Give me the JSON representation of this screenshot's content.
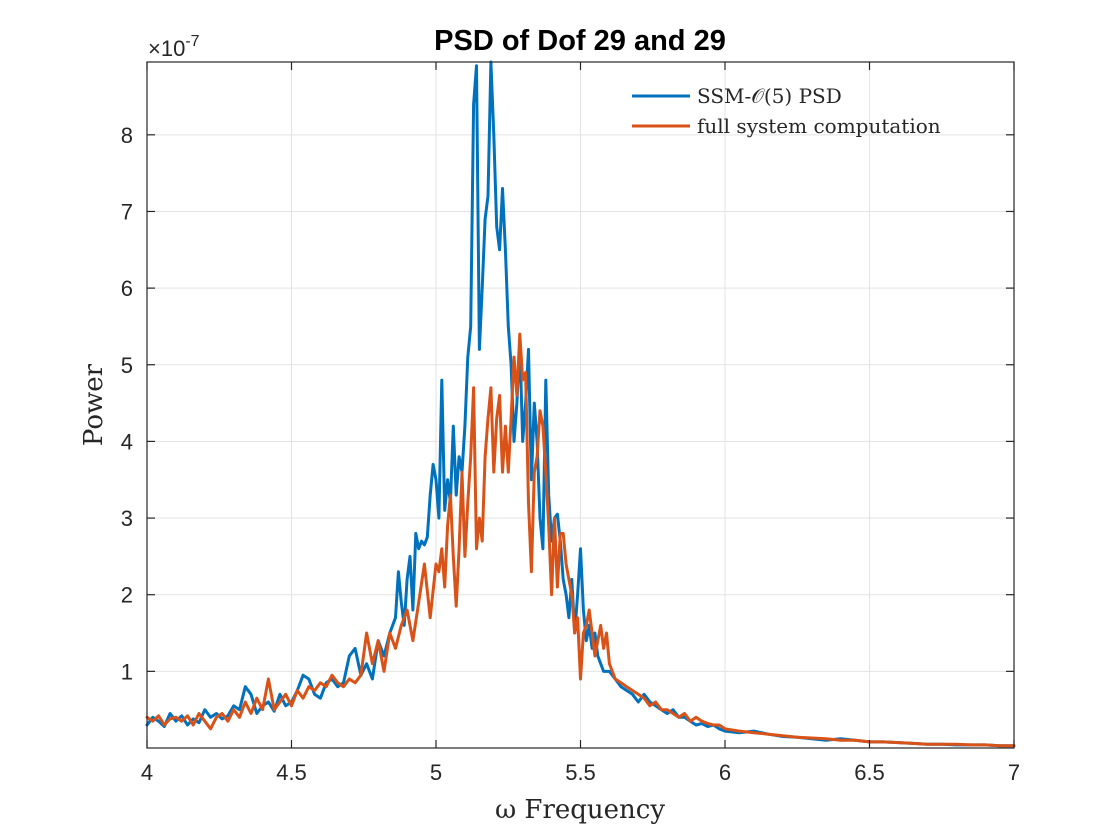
{
  "chart_data": {
    "type": "line",
    "title": "PSD of Dof 29 and 29",
    "xlabel": "ω Frequency",
    "ylabel": "Power",
    "y_exponent_label": "×10",
    "y_exponent_power": "-7",
    "xlim": [
      4,
      7
    ],
    "ylim": [
      0,
      8.95
    ],
    "xticks": [
      4,
      4.5,
      5,
      5.5,
      6,
      6.5,
      7
    ],
    "xtick_labels": [
      "4",
      "4.5",
      "5",
      "5.5",
      "6",
      "6.5",
      "7"
    ],
    "yticks": [
      1,
      2,
      3,
      4,
      5,
      6,
      7,
      8
    ],
    "ytick_labels": [
      "1",
      "2",
      "3",
      "4",
      "5",
      "6",
      "7",
      "8"
    ],
    "grid": true,
    "legend_position": "top-right",
    "series": [
      {
        "name": "SSM-𝒪(5) PSD",
        "color": "#0072BD",
        "x": [
          4.0,
          4.02,
          4.04,
          4.06,
          4.08,
          4.1,
          4.12,
          4.14,
          4.16,
          4.18,
          4.2,
          4.22,
          4.24,
          4.26,
          4.28,
          4.3,
          4.32,
          4.34,
          4.36,
          4.38,
          4.4,
          4.42,
          4.44,
          4.46,
          4.48,
          4.5,
          4.52,
          4.54,
          4.56,
          4.58,
          4.6,
          4.62,
          4.64,
          4.66,
          4.68,
          4.7,
          4.72,
          4.74,
          4.76,
          4.78,
          4.8,
          4.82,
          4.84,
          4.86,
          4.87,
          4.88,
          4.89,
          4.9,
          4.91,
          4.92,
          4.93,
          4.94,
          4.95,
          4.96,
          4.97,
          4.98,
          4.99,
          5.0,
          5.01,
          5.02,
          5.03,
          5.04,
          5.05,
          5.06,
          5.07,
          5.08,
          5.09,
          5.1,
          5.11,
          5.12,
          5.13,
          5.14,
          5.15,
          5.16,
          5.17,
          5.18,
          5.19,
          5.2,
          5.21,
          5.22,
          5.23,
          5.24,
          5.25,
          5.26,
          5.27,
          5.28,
          5.29,
          5.3,
          5.31,
          5.32,
          5.33,
          5.34,
          5.35,
          5.36,
          5.37,
          5.38,
          5.39,
          5.4,
          5.41,
          5.42,
          5.43,
          5.44,
          5.45,
          5.46,
          5.47,
          5.48,
          5.49,
          5.5,
          5.51,
          5.52,
          5.53,
          5.54,
          5.55,
          5.56,
          5.57,
          5.58,
          5.6,
          5.62,
          5.64,
          5.66,
          5.68,
          5.7,
          5.72,
          5.74,
          5.76,
          5.78,
          5.8,
          5.82,
          5.84,
          5.86,
          5.88,
          5.9,
          5.92,
          5.94,
          5.96,
          5.98,
          6.0,
          6.05,
          6.1,
          6.15,
          6.2,
          6.25,
          6.3,
          6.35,
          6.4,
          6.45,
          6.5,
          6.55,
          6.6,
          6.65,
          6.7,
          6.75,
          6.8,
          6.85,
          6.9,
          6.95,
          7.0
        ],
        "y": [
          0.3,
          0.4,
          0.35,
          0.28,
          0.45,
          0.35,
          0.42,
          0.3,
          0.38,
          0.33,
          0.5,
          0.4,
          0.45,
          0.38,
          0.42,
          0.55,
          0.5,
          0.8,
          0.7,
          0.45,
          0.55,
          0.6,
          0.48,
          0.7,
          0.55,
          0.6,
          0.75,
          0.95,
          0.9,
          0.7,
          0.65,
          0.85,
          0.9,
          0.8,
          0.85,
          1.2,
          1.3,
          0.95,
          1.1,
          0.9,
          1.4,
          1.2,
          1.5,
          1.7,
          2.3,
          1.9,
          1.6,
          2.2,
          2.5,
          1.8,
          2.8,
          2.6,
          2.7,
          2.65,
          2.75,
          3.3,
          3.7,
          3.5,
          3.0,
          4.8,
          3.1,
          3.5,
          3.2,
          4.2,
          3.3,
          3.8,
          3.6,
          4.2,
          5.1,
          5.5,
          8.4,
          8.9,
          5.2,
          6.0,
          6.9,
          7.2,
          8.95,
          8.0,
          6.8,
          6.5,
          7.3,
          6.5,
          5.5,
          5.0,
          4.0,
          4.5,
          5.3,
          4.0,
          4.5,
          5.2,
          3.5,
          4.5,
          4.0,
          3.0,
          2.6,
          4.8,
          3.3,
          2.7,
          3.0,
          3.05,
          2.7,
          2.2,
          2.0,
          1.7,
          2.2,
          1.5,
          2.0,
          2.6,
          1.8,
          1.4,
          1.6,
          1.3,
          1.5,
          1.2,
          1.1,
          1.0,
          1.0,
          0.9,
          0.8,
          0.75,
          0.7,
          0.6,
          0.7,
          0.6,
          0.55,
          0.5,
          0.45,
          0.5,
          0.4,
          0.4,
          0.35,
          0.3,
          0.32,
          0.28,
          0.3,
          0.25,
          0.22,
          0.2,
          0.22,
          0.18,
          0.15,
          0.14,
          0.12,
          0.1,
          0.12,
          0.1,
          0.08,
          0.08,
          0.07,
          0.06,
          0.05,
          0.05,
          0.04,
          0.04,
          0.04,
          0.03,
          0.03
        ]
      },
      {
        "name": "full system computation",
        "color": "#D95319",
        "x": [
          4.0,
          4.02,
          4.04,
          4.06,
          4.08,
          4.1,
          4.12,
          4.14,
          4.16,
          4.18,
          4.2,
          4.22,
          4.24,
          4.26,
          4.28,
          4.3,
          4.32,
          4.34,
          4.36,
          4.38,
          4.4,
          4.42,
          4.44,
          4.46,
          4.48,
          4.5,
          4.52,
          4.54,
          4.56,
          4.58,
          4.6,
          4.62,
          4.64,
          4.66,
          4.68,
          4.7,
          4.72,
          4.74,
          4.76,
          4.78,
          4.8,
          4.82,
          4.84,
          4.86,
          4.88,
          4.9,
          4.92,
          4.94,
          4.96,
          4.98,
          5.0,
          5.01,
          5.02,
          5.03,
          5.04,
          5.05,
          5.06,
          5.07,
          5.08,
          5.09,
          5.1,
          5.11,
          5.12,
          5.13,
          5.14,
          5.15,
          5.16,
          5.17,
          5.18,
          5.19,
          5.2,
          5.21,
          5.22,
          5.23,
          5.24,
          5.25,
          5.26,
          5.27,
          5.28,
          5.29,
          5.3,
          5.31,
          5.32,
          5.33,
          5.34,
          5.35,
          5.36,
          5.37,
          5.38,
          5.39,
          5.4,
          5.41,
          5.42,
          5.43,
          5.44,
          5.45,
          5.46,
          5.47,
          5.48,
          5.49,
          5.5,
          5.51,
          5.52,
          5.53,
          5.54,
          5.55,
          5.56,
          5.57,
          5.58,
          5.59,
          5.6,
          5.61,
          5.62,
          5.64,
          5.66,
          5.68,
          5.7,
          5.72,
          5.74,
          5.76,
          5.78,
          5.8,
          5.82,
          5.84,
          5.86,
          5.88,
          5.9,
          5.92,
          5.94,
          5.96,
          5.98,
          6.0,
          6.05,
          6.1,
          6.15,
          6.2,
          6.25,
          6.3,
          6.35,
          6.4,
          6.45,
          6.5,
          6.55,
          6.6,
          6.65,
          6.7,
          6.75,
          6.8,
          6.85,
          6.9,
          6.95,
          7.0
        ],
        "y": [
          0.4,
          0.35,
          0.42,
          0.3,
          0.38,
          0.4,
          0.35,
          0.42,
          0.3,
          0.45,
          0.35,
          0.25,
          0.4,
          0.45,
          0.35,
          0.5,
          0.4,
          0.6,
          0.45,
          0.65,
          0.5,
          0.9,
          0.5,
          0.6,
          0.7,
          0.55,
          0.75,
          0.65,
          0.8,
          0.75,
          0.85,
          0.8,
          0.95,
          0.85,
          0.8,
          0.9,
          0.85,
          0.95,
          1.5,
          1.1,
          1.4,
          1.0,
          1.5,
          1.3,
          1.6,
          1.8,
          1.4,
          1.9,
          2.4,
          1.7,
          2.4,
          2.3,
          2.6,
          2.1,
          2.9,
          3.3,
          2.5,
          1.85,
          2.6,
          3.6,
          2.5,
          3.2,
          3.8,
          4.7,
          2.6,
          3.0,
          2.7,
          3.8,
          4.3,
          4.7,
          3.6,
          4.3,
          4.6,
          3.6,
          4.2,
          3.6,
          4.3,
          5.1,
          4.6,
          5.4,
          4.8,
          4.9,
          3.2,
          2.3,
          3.6,
          3.8,
          4.4,
          4.2,
          3.6,
          2.9,
          2.0,
          3.0,
          2.1,
          2.8,
          2.8,
          2.4,
          2.2,
          2.0,
          1.5,
          1.7,
          0.9,
          1.5,
          1.6,
          1.8,
          1.5,
          1.2,
          1.4,
          1.6,
          1.3,
          1.5,
          1.1,
          1.0,
          0.9,
          0.85,
          0.8,
          0.75,
          0.7,
          0.65,
          0.55,
          0.6,
          0.5,
          0.5,
          0.45,
          0.4,
          0.45,
          0.35,
          0.4,
          0.35,
          0.32,
          0.3,
          0.3,
          0.25,
          0.22,
          0.2,
          0.18,
          0.16,
          0.14,
          0.13,
          0.12,
          0.1,
          0.1,
          0.08,
          0.08,
          0.07,
          0.06,
          0.05,
          0.05,
          0.05,
          0.04,
          0.04,
          0.03,
          0.03
        ]
      }
    ]
  }
}
